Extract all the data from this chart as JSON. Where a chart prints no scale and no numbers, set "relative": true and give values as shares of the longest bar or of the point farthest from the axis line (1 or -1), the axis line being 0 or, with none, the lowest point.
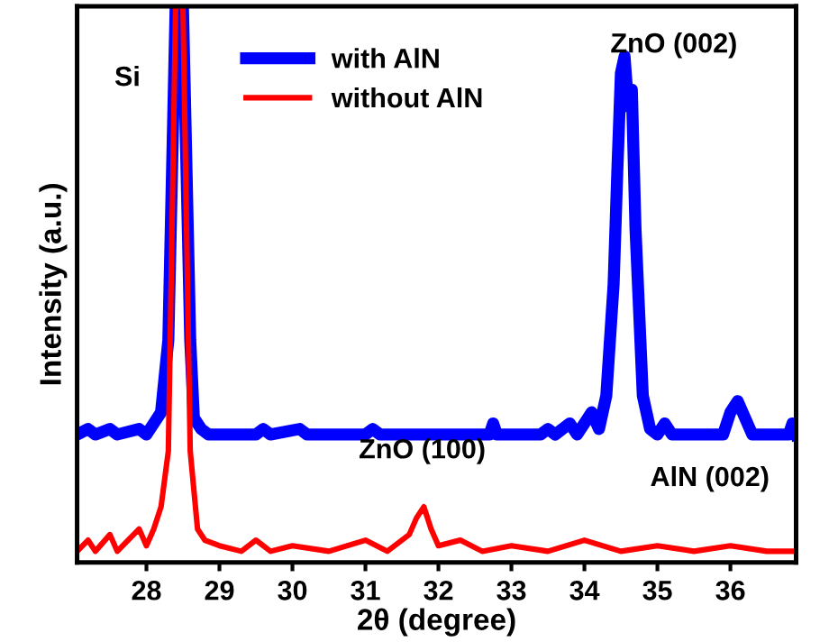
{
  "chart_data": {
    "type": "line",
    "relative": true,
    "xlabel": "2θ (degree)",
    "ylabel": "Intensity (a.u.)",
    "xlim": [
      27.05,
      36.9
    ],
    "xticks": [
      28,
      29,
      30,
      31,
      32,
      33,
      34,
      35,
      36
    ],
    "tick_labels": "x",
    "legend": "top",
    "grid": false,
    "marker": "none",
    "line_style": "solid",
    "annotations": [
      "Si",
      "ZnO (002)",
      "ZnO (100)",
      "AlN (002)"
    ],
    "series": [
      {
        "name": "with AlN",
        "color": "#0000ff",
        "x": [
          27.05,
          27.2,
          27.3,
          27.5,
          27.6,
          27.9,
          28.0,
          28.1,
          28.2,
          28.3,
          28.4,
          28.5,
          28.6,
          28.65,
          28.75,
          28.85,
          29.5,
          29.6,
          29.7,
          30.1,
          30.2,
          31.0,
          31.1,
          31.2,
          32.7,
          32.75,
          32.8,
          33.4,
          33.5,
          33.6,
          33.8,
          33.9,
          34.1,
          34.2,
          34.3,
          34.4,
          34.45,
          34.5,
          34.55,
          34.6,
          34.65,
          34.7,
          34.75,
          34.8,
          34.9,
          35.0,
          35.1,
          35.2,
          35.9,
          36.0,
          36.1,
          36.2,
          36.3,
          36.8,
          36.85,
          36.9
        ],
        "values": [
          0.23,
          0.24,
          0.23,
          0.24,
          0.23,
          0.24,
          0.23,
          0.25,
          0.27,
          0.4,
          1.0,
          1.0,
          0.4,
          0.26,
          0.24,
          0.23,
          0.23,
          0.24,
          0.23,
          0.24,
          0.23,
          0.23,
          0.24,
          0.23,
          0.23,
          0.25,
          0.23,
          0.23,
          0.24,
          0.23,
          0.25,
          0.23,
          0.27,
          0.24,
          0.3,
          0.5,
          0.7,
          0.88,
          0.91,
          0.82,
          0.85,
          0.6,
          0.45,
          0.3,
          0.24,
          0.23,
          0.25,
          0.23,
          0.23,
          0.27,
          0.29,
          0.26,
          0.23,
          0.23,
          0.25,
          0.23
        ]
      },
      {
        "name": "without AlN",
        "color": "#ff0000",
        "x": [
          27.05,
          27.2,
          27.3,
          27.5,
          27.6,
          27.9,
          28.0,
          28.1,
          28.2,
          28.3,
          28.4,
          28.5,
          28.6,
          28.7,
          28.8,
          29.0,
          29.3,
          29.5,
          29.7,
          30.0,
          30.5,
          31.0,
          31.3,
          31.6,
          31.7,
          31.8,
          31.9,
          32.0,
          32.3,
          32.6,
          33.0,
          33.5,
          34.0,
          34.5,
          35.0,
          35.5,
          36.0,
          36.5,
          36.9
        ],
        "values": [
          0.02,
          0.04,
          0.02,
          0.05,
          0.02,
          0.06,
          0.03,
          0.06,
          0.1,
          0.2,
          1.0,
          1.0,
          0.2,
          0.06,
          0.04,
          0.03,
          0.02,
          0.04,
          0.02,
          0.03,
          0.02,
          0.04,
          0.02,
          0.05,
          0.08,
          0.1,
          0.06,
          0.03,
          0.04,
          0.02,
          0.03,
          0.02,
          0.04,
          0.02,
          0.03,
          0.02,
          0.03,
          0.02,
          0.02
        ]
      }
    ]
  }
}
